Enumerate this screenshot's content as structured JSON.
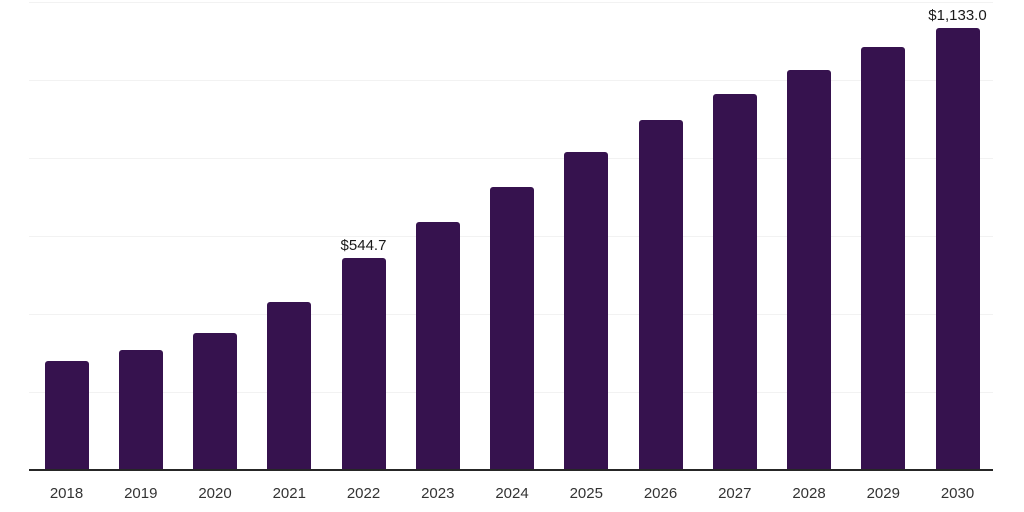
{
  "chart_data": {
    "type": "bar",
    "title": "",
    "xlabel": "",
    "ylabel": "",
    "categories": [
      "2018",
      "2019",
      "2020",
      "2021",
      "2022",
      "2023",
      "2024",
      "2025",
      "2026",
      "2027",
      "2028",
      "2029",
      "2030"
    ],
    "values": [
      280.5,
      307.5,
      351.5,
      430.5,
      544.7,
      636.0,
      725.5,
      815.5,
      897.5,
      964.0,
      1025.5,
      1083.5,
      1133.0
    ],
    "value_labels": [
      "",
      "",
      "",
      "",
      "$544.7",
      "",
      "",
      "",
      "",
      "",
      "",
      "",
      "$1,133.0"
    ],
    "ylim": [
      0,
      1200
    ],
    "gridline_step": 200,
    "grid": "horizontal-only",
    "legend_position": "none",
    "colors": {
      "bar": "#36124E",
      "axis_line": "#262626",
      "gridline": "#f2f2f2",
      "tick_label": "#333333",
      "value_label": "#1a1a1a",
      "background": "#ffffff"
    }
  }
}
